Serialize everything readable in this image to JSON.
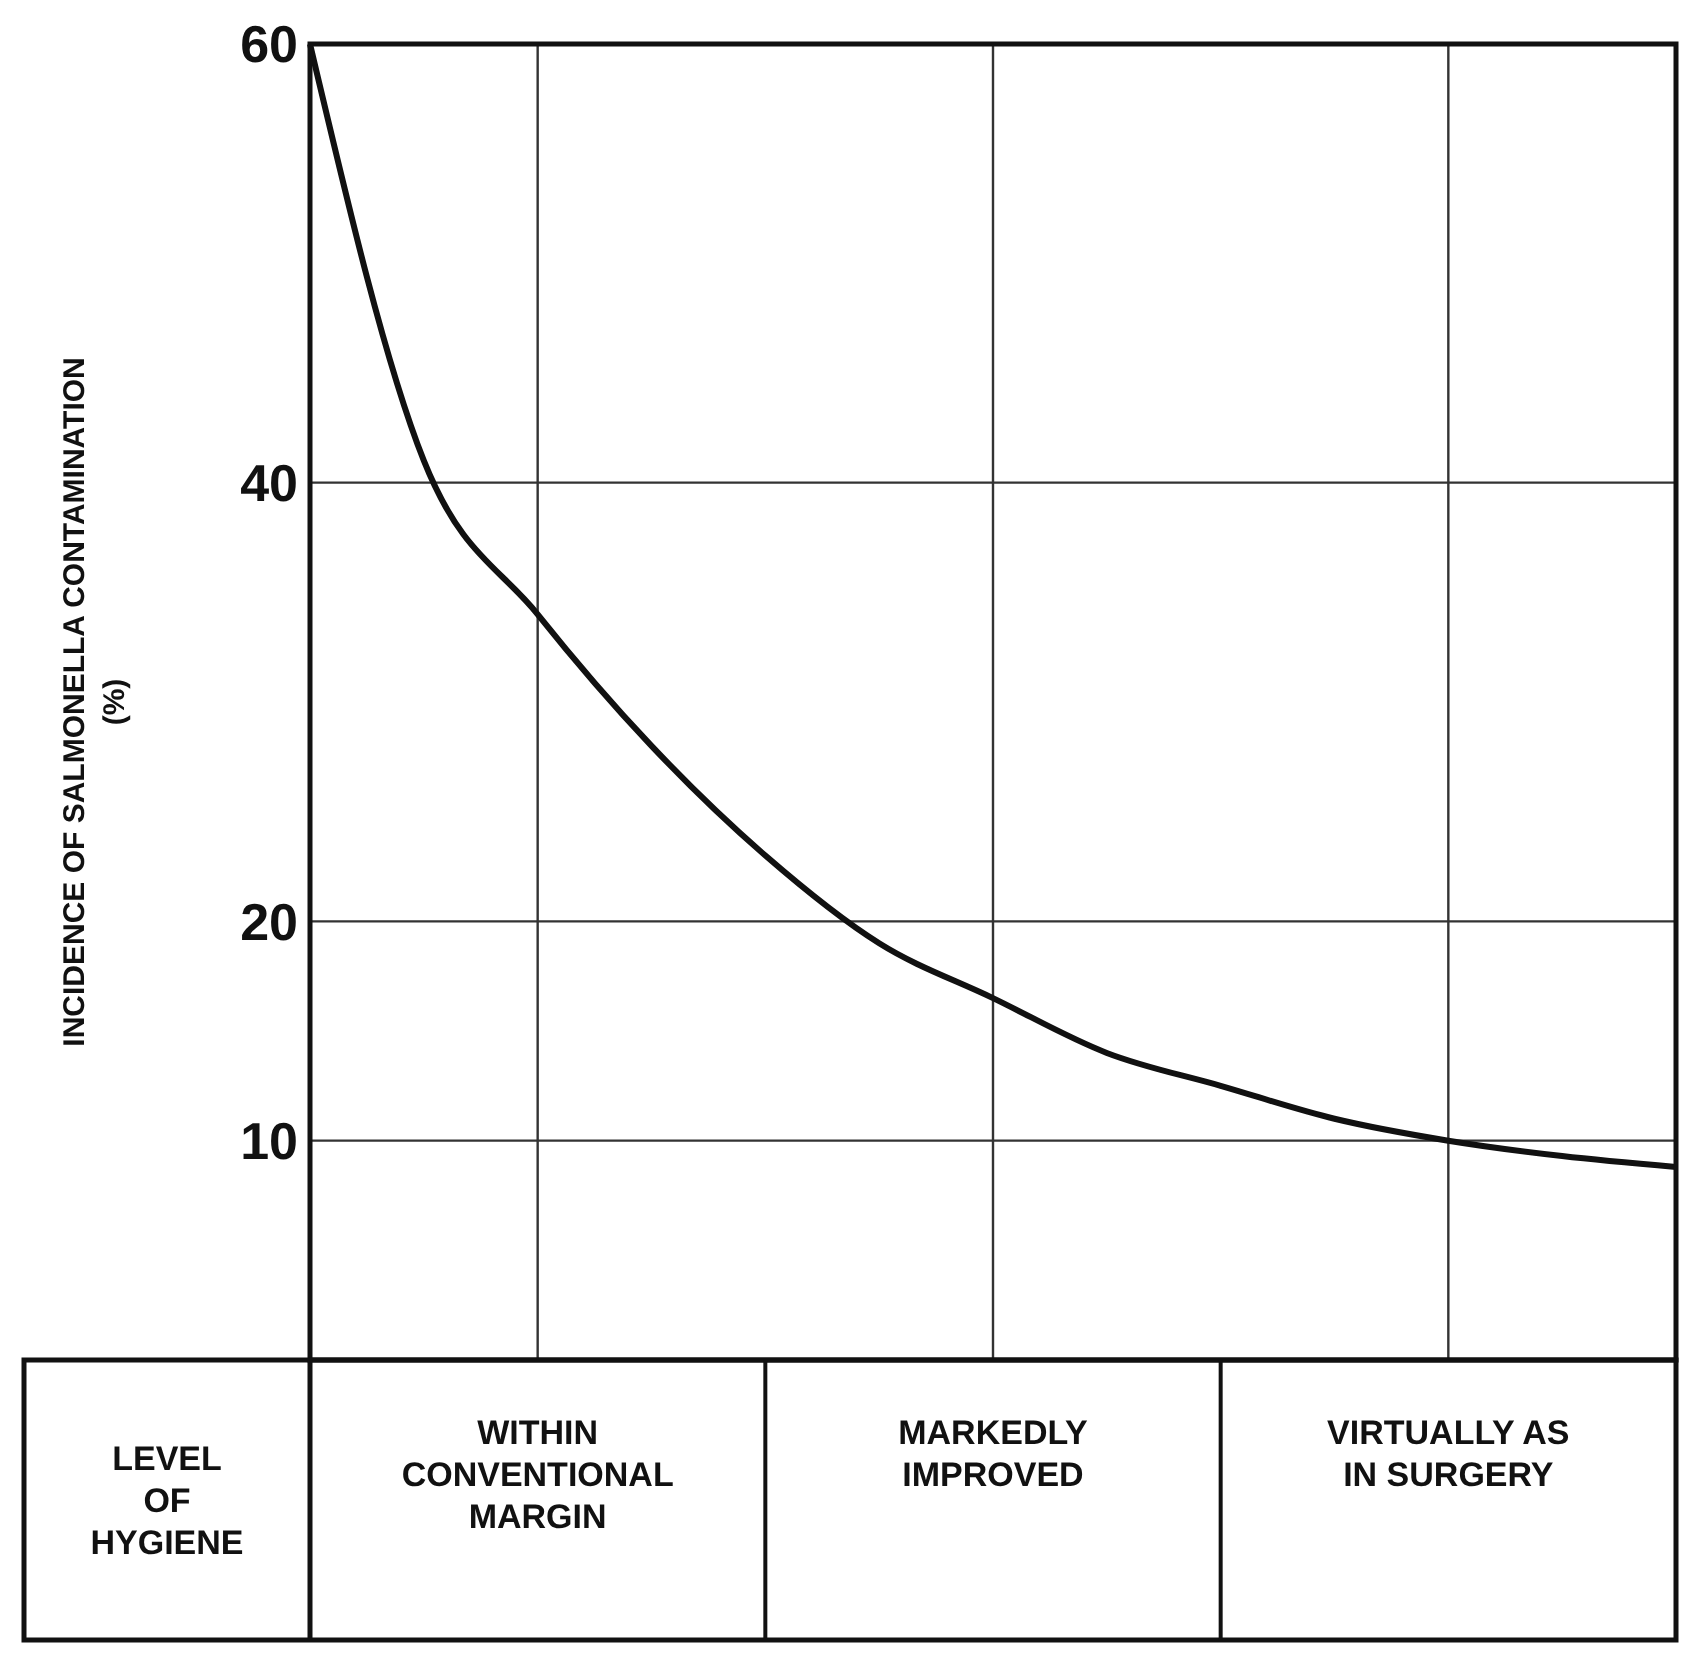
{
  "chart_data": {
    "type": "line",
    "xlabel": "LEVEL OF HYGIENE",
    "ylabel": "INCIDENCE OF SALMONELLA CONTAMINATION (%)",
    "categories": [
      null,
      null,
      "WITHIN CONVENTIONAL MARGIN",
      null,
      null,
      null,
      "MARKEDLY IMPROVED",
      null,
      null,
      null,
      "VIRTUALLY AS IN SURGERY",
      null,
      null
    ],
    "series": [
      {
        "color": "#111111",
        "values": [
          60,
          41,
          34,
          28,
          23,
          19,
          16.5,
          14,
          12.5,
          11,
          10,
          9.3,
          8.8
        ]
      }
    ],
    "ylim": [
      0,
      60
    ],
    "yticks": [
      10,
      20,
      40,
      60
    ],
    "grid": true,
    "marker": "none",
    "line_style": "solid"
  }
}
